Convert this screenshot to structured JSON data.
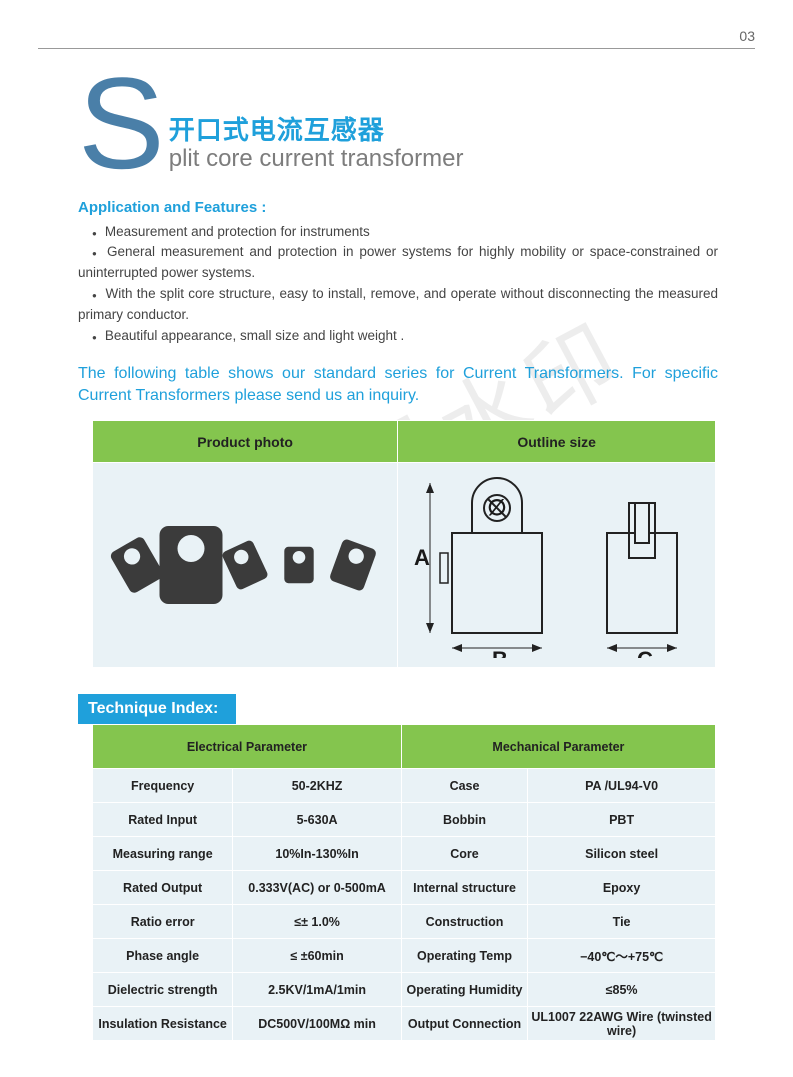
{
  "page_number": "03",
  "title": {
    "drop_cap": "S",
    "cn": "开口式电流互感器",
    "en": "plit core current transformer"
  },
  "application": {
    "heading": "Application and Features :",
    "items": [
      "Measurement and protection for instruments",
      "General measurement and protection in power systems for highly mobility or space-constrained or uninterrupted power systems.",
      "With the split core structure,  easy to install, remove, and operate without disconnecting the measured primary conductor.",
      "Beautiful appearance, small size and light weight ."
    ]
  },
  "table_intro": "The following table shows our standard series for Current Transformers. For specific Current Transformers please send us an inquiry.",
  "photo_table": {
    "headers": [
      "Product photo",
      "Outline size"
    ],
    "dims": {
      "A": "A",
      "B": "B",
      "C": "C",
      "diameter": "∅"
    }
  },
  "technique_heading": "Technique Index:",
  "spec_table": {
    "headers": [
      "Electrical Parameter",
      "Mechanical Parameter"
    ],
    "rows": [
      [
        "Frequency",
        "50-2KHZ",
        "Case",
        "PA /UL94-V0"
      ],
      [
        "Rated Input",
        "5-630A",
        "Bobbin",
        "PBT"
      ],
      [
        "Measuring range",
        "10%In-130%In",
        "Core",
        "Silicon steel"
      ],
      [
        "Rated Output",
        "0.333V(AC) or 0-500mA",
        "Internal structure",
        "Epoxy"
      ],
      [
        "Ratio error",
        "≤± 1.0%",
        "Construction",
        "Tie"
      ],
      [
        "Phase angle",
        "≤ ±60min",
        "Operating Temp",
        "−40℃～+75℃"
      ],
      [
        "Dielectric strength",
        "2.5KV/1mA/1min",
        "Operating Humidity",
        "≤85%"
      ],
      [
        "Insulation Resistance",
        "DC500V/100MΩ min",
        "Output Connection",
        "UL1007 22AWG Wire (twinsted wire)"
      ]
    ]
  },
  "watermark": "非会员水印",
  "colors": {
    "accent_blue": "#1fa0db",
    "header_green": "#84c54e",
    "cell_bg": "#e9f2f6",
    "dropcap": "#4a7fa8"
  }
}
